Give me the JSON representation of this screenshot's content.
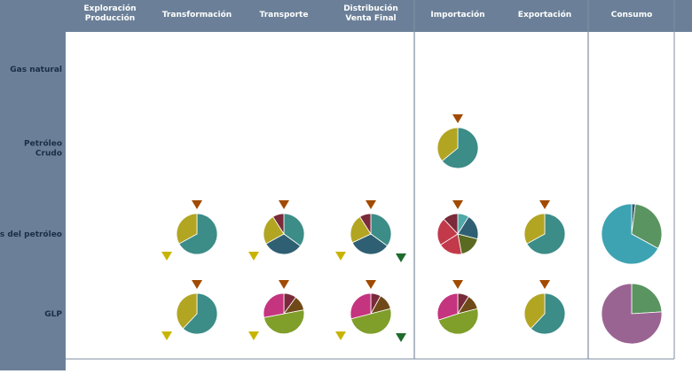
{
  "colors": {
    "header_bg": "#6B8098",
    "header_text": "#FFFFFF",
    "row_text": "#1A2E45",
    "divider": "#7E8EA0",
    "marker_in": "#A24A00",
    "marker_side": "#C8B400",
    "marker_out": "#1F6B2C",
    "teal": "#3C8C87",
    "olive": "#B2A522",
    "darkteal": "#2F5F72",
    "maroon": "#7A2A3A",
    "crimson": "#C23A4A",
    "magenta": "#C5347E",
    "lime": "#7F9E2A",
    "darkolive": "#6A5A16",
    "brown": "#6F4A18",
    "lightteal": "#4FA9A8",
    "darkolive2": "#5A6A20",
    "cyan": "#3DA3B2",
    "green": "#5A9460",
    "mauve": "#9A6492"
  },
  "chart_data": {
    "type": "pie",
    "columns": [
      "Exploración Producción",
      "Transformación",
      "Transporte",
      "Distribución Venta Final",
      "Importación",
      "Exportación",
      "Consumo"
    ],
    "column_lines": [
      [
        "Exploración",
        "Producción"
      ],
      [
        "Transformación"
      ],
      [
        "Transporte"
      ],
      [
        "Distribución",
        "Venta Final"
      ],
      [
        "Importación"
      ],
      [
        "Exportación"
      ],
      [
        "Consumo"
      ]
    ],
    "rows": [
      "Gas natural",
      "Petróleo Crudo",
      "s del petróleo",
      "GLP"
    ],
    "row_lines": [
      [
        "Gas natural"
      ],
      [
        "Petróleo",
        "Crudo"
      ],
      [
        "s del petróleo"
      ],
      [
        "GLP"
      ]
    ],
    "cells": [
      {
        "row": 1,
        "col": 4,
        "slices": [
          {
            "value": 64,
            "color": "teal"
          },
          {
            "value": 36,
            "color": "olive"
          }
        ],
        "markers": [
          "in"
        ]
      },
      {
        "row": 2,
        "col": 1,
        "slices": [
          {
            "value": 67,
            "color": "teal"
          },
          {
            "value": 33,
            "color": "olive"
          }
        ],
        "markers": [
          "in",
          "side"
        ]
      },
      {
        "row": 2,
        "col": 2,
        "slices": [
          {
            "value": 35,
            "color": "teal"
          },
          {
            "value": 32,
            "color": "darkteal"
          },
          {
            "value": 24,
            "color": "olive"
          },
          {
            "value": 9,
            "color": "maroon"
          }
        ],
        "markers": [
          "in",
          "side"
        ]
      },
      {
        "row": 2,
        "col": 3,
        "slices": [
          {
            "value": 35,
            "color": "teal"
          },
          {
            "value": 33,
            "color": "darkteal"
          },
          {
            "value": 23,
            "color": "olive"
          },
          {
            "value": 9,
            "color": "maroon"
          }
        ],
        "markers": [
          "in",
          "side",
          "out"
        ]
      },
      {
        "row": 2,
        "col": 4,
        "slices": [
          {
            "value": 9,
            "color": "lightteal"
          },
          {
            "value": 20,
            "color": "darkteal"
          },
          {
            "value": 18,
            "color": "darkolive2"
          },
          {
            "value": 19,
            "color": "crimson"
          },
          {
            "value": 22,
            "color": "crimson"
          },
          {
            "value": 12,
            "color": "maroon"
          }
        ],
        "markers": [
          "in"
        ]
      },
      {
        "row": 2,
        "col": 5,
        "slices": [
          {
            "value": 67,
            "color": "teal"
          },
          {
            "value": 33,
            "color": "olive"
          }
        ],
        "markers": [
          "in"
        ]
      },
      {
        "row": 2,
        "col": 6,
        "slices": [
          {
            "value": 2,
            "color": "darkteal"
          },
          {
            "value": 31,
            "color": "green"
          },
          {
            "value": 67,
            "color": "cyan"
          }
        ],
        "markers": []
      },
      {
        "row": 3,
        "col": 1,
        "slices": [
          {
            "value": 62,
            "color": "teal"
          },
          {
            "value": 38,
            "color": "olive"
          }
        ],
        "markers": [
          "in",
          "side"
        ]
      },
      {
        "row": 3,
        "col": 2,
        "slices": [
          {
            "value": 10,
            "color": "maroon"
          },
          {
            "value": 12,
            "color": "brown"
          },
          {
            "value": 50,
            "color": "lime"
          },
          {
            "value": 28,
            "color": "magenta"
          }
        ],
        "markers": [
          "in",
          "side"
        ]
      },
      {
        "row": 3,
        "col": 3,
        "slices": [
          {
            "value": 8,
            "color": "maroon"
          },
          {
            "value": 13,
            "color": "brown"
          },
          {
            "value": 50,
            "color": "lime"
          },
          {
            "value": 29,
            "color": "magenta"
          }
        ],
        "markers": [
          "in",
          "side",
          "out"
        ]
      },
      {
        "row": 3,
        "col": 4,
        "slices": [
          {
            "value": 9,
            "color": "maroon"
          },
          {
            "value": 12,
            "color": "brown"
          },
          {
            "value": 49,
            "color": "lime"
          },
          {
            "value": 30,
            "color": "magenta"
          }
        ],
        "markers": [
          "in"
        ]
      },
      {
        "row": 3,
        "col": 5,
        "slices": [
          {
            "value": 62,
            "color": "teal"
          },
          {
            "value": 38,
            "color": "olive"
          }
        ],
        "markers": [
          "in"
        ]
      },
      {
        "row": 3,
        "col": 6,
        "slices": [
          {
            "value": 24,
            "color": "green"
          },
          {
            "value": 76,
            "color": "mauve"
          }
        ],
        "markers": []
      }
    ]
  }
}
